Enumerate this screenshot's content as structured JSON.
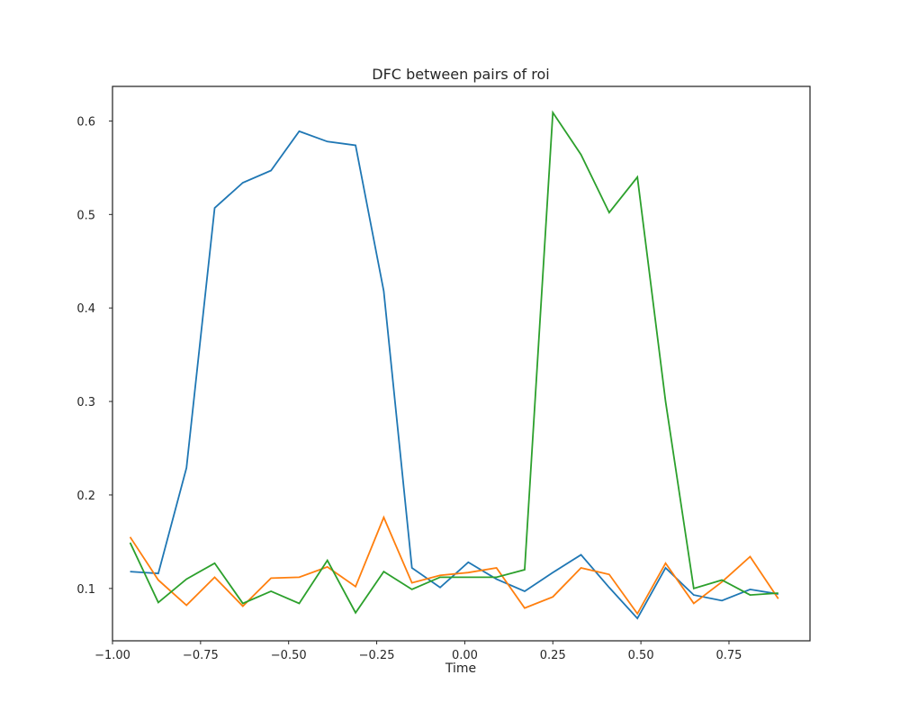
{
  "chart_data": {
    "type": "line",
    "title": "DFC between pairs of roi",
    "xlabel": "Time",
    "ylabel": "",
    "xlim": [
      -1.0,
      0.98
    ],
    "ylim": [
      0.044,
      0.637
    ],
    "xticks": [
      -1.0,
      -0.75,
      -0.5,
      -0.25,
      0.0,
      0.25,
      0.5,
      0.75
    ],
    "xtick_labels": [
      "−1.00",
      "−0.75",
      "−0.50",
      "−0.25",
      "0.00",
      "0.25",
      "0.50",
      "0.75"
    ],
    "yticks": [
      0.1,
      0.2,
      0.3,
      0.4,
      0.5,
      0.6
    ],
    "ytick_labels": [
      "0.1",
      "0.2",
      "0.3",
      "0.4",
      "0.5",
      "0.6"
    ],
    "grid": false,
    "x": [
      -0.95,
      -0.87,
      -0.79,
      -0.71,
      -0.63,
      -0.55,
      -0.47,
      -0.39,
      -0.31,
      -0.23,
      -0.15,
      -0.07,
      0.01,
      0.09,
      0.17,
      0.25,
      0.33,
      0.41,
      0.49,
      0.57,
      0.65,
      0.73,
      0.81,
      0.89
    ],
    "series": [
      {
        "color": "#1f77b4",
        "values": [
          0.118,
          0.116,
          0.229,
          0.507,
          0.534,
          0.547,
          0.589,
          0.578,
          0.574,
          0.418,
          0.122,
          0.101,
          0.128,
          0.11,
          0.097,
          0.117,
          0.136,
          0.101,
          0.068,
          0.122,
          0.093,
          0.087,
          0.099,
          0.094
        ]
      },
      {
        "color": "#ff7f0e",
        "values": [
          0.155,
          0.109,
          0.082,
          0.112,
          0.081,
          0.111,
          0.112,
          0.123,
          0.102,
          0.176,
          0.106,
          0.114,
          0.117,
          0.122,
          0.079,
          0.091,
          0.122,
          0.115,
          0.073,
          0.127,
          0.084,
          0.107,
          0.134,
          0.089
        ]
      },
      {
        "color": "#2ca02c",
        "values": [
          0.149,
          0.085,
          0.11,
          0.127,
          0.084,
          0.097,
          0.084,
          0.13,
          0.074,
          0.118,
          0.099,
          0.112,
          0.112,
          0.112,
          0.12,
          0.609,
          0.564,
          0.502,
          0.54,
          0.3,
          0.1,
          0.109,
          0.093,
          0.095
        ]
      }
    ]
  }
}
